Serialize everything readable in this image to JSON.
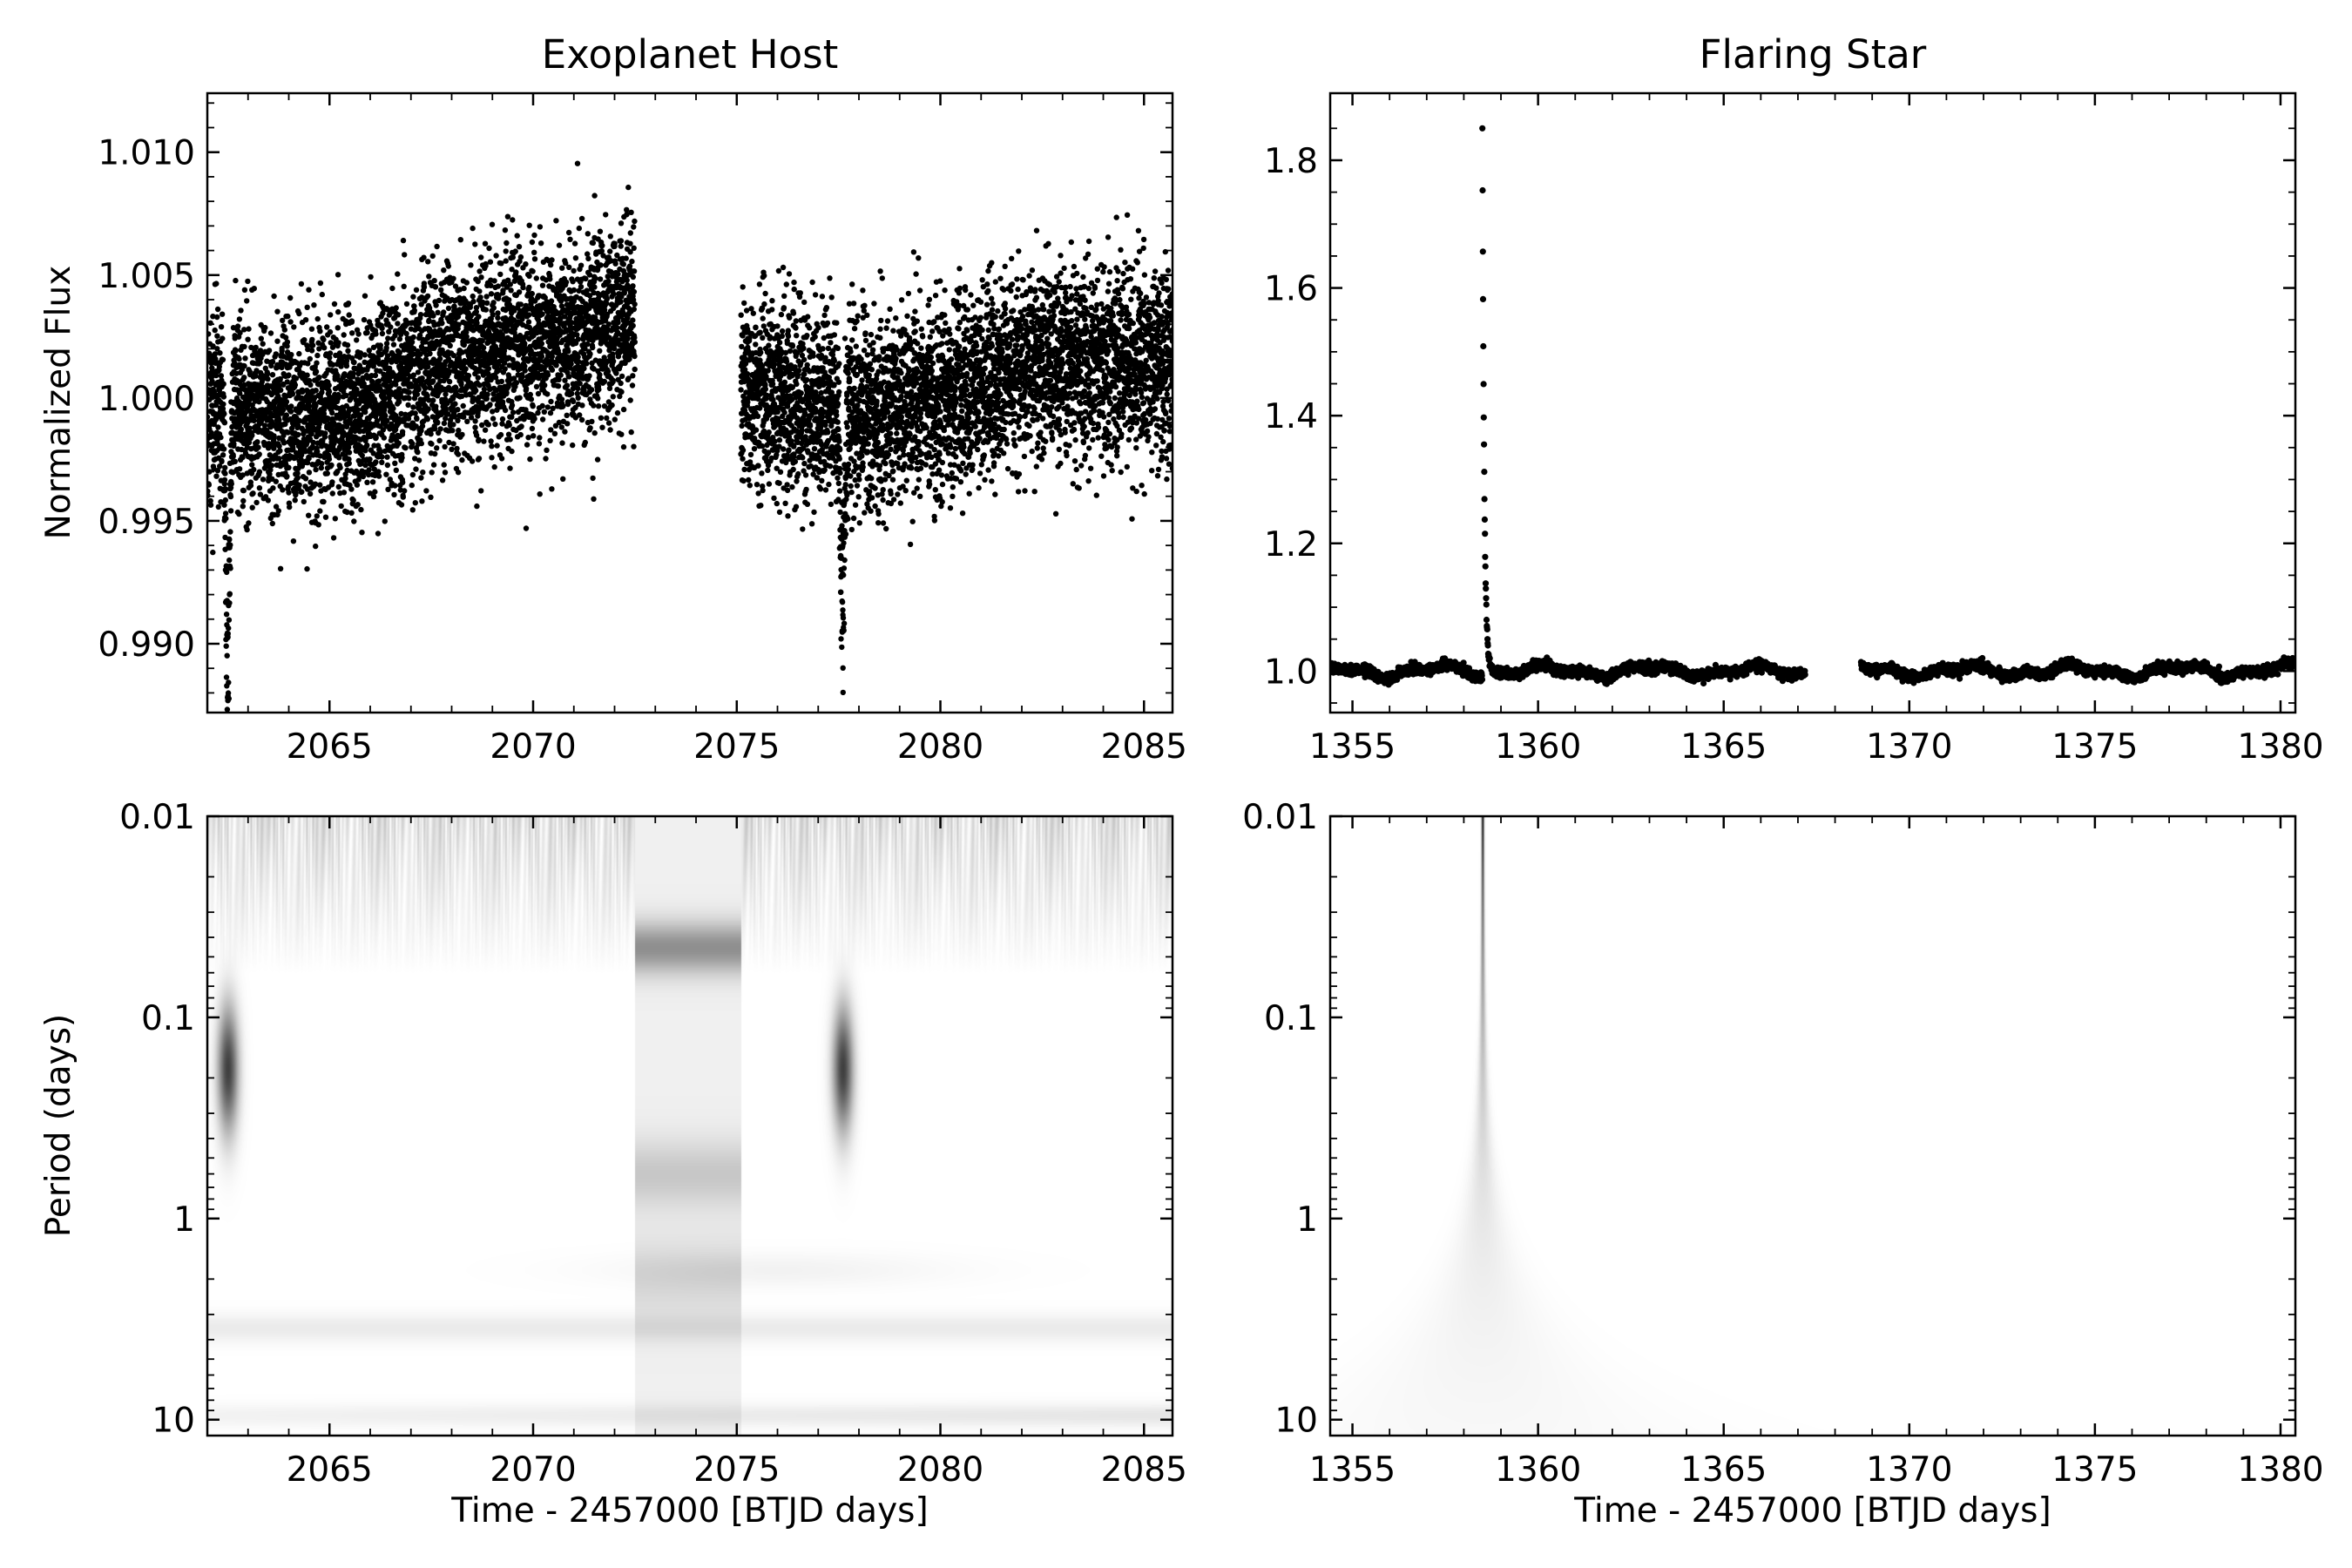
{
  "chart_data": [
    {
      "type": "scatter",
      "panel": "top-left",
      "title": "Exoplanet Host",
      "xlabel": "",
      "ylabel": "Normalized Flux",
      "xlim": [
        2062,
        2085.7
      ],
      "ylim": [
        0.9872,
        1.0124
      ],
      "xticks": [
        2065,
        2070,
        2075,
        2080,
        2085
      ],
      "xticklabels": [
        "2065",
        "2070",
        "2075",
        "2080",
        "2085"
      ],
      "yticks": [
        0.99,
        0.995,
        1.0,
        1.005,
        1.01
      ],
      "yticklabels": [
        "0.990",
        "0.995",
        "1.000",
        "1.005",
        "1.010"
      ],
      "grid": false,
      "marker_color": "#000000",
      "segments": [
        {
          "x_start": 2062.0,
          "x_end": 2072.5,
          "y_at_start": 0.9995,
          "y_at_end": 1.004,
          "scatter_std": 0.0019
        },
        {
          "x_start": 2075.1,
          "x_end": 2085.7,
          "y_at_start": 0.9997,
          "y_at_end": 1.002,
          "scatter_std": 0.0019
        }
      ],
      "transits": [
        {
          "x": 2062.5,
          "min_flux": 0.987,
          "duration": 0.3
        },
        {
          "x": 2077.6,
          "min_flux": 0.9898,
          "duration": 0.3
        }
      ]
    },
    {
      "type": "scatter",
      "panel": "top-right",
      "title": "Flaring Star",
      "xlabel": "",
      "ylabel": "",
      "xlim": [
        1354.4,
        1380.4
      ],
      "ylim": [
        0.935,
        1.905
      ],
      "xticks": [
        1355,
        1360,
        1365,
        1370,
        1375,
        1380
      ],
      "xticklabels": [
        "1355",
        "1360",
        "1365",
        "1370",
        "1375",
        "1380"
      ],
      "yticks": [
        1.0,
        1.2,
        1.4,
        1.6,
        1.8
      ],
      "yticklabels": [
        "1.0",
        "1.2",
        "1.4",
        "1.6",
        "1.8"
      ],
      "grid": false,
      "marker_color": "#000000",
      "segments": [
        {
          "x_start": 1354.4,
          "x_end": 1367.2,
          "baseline": 1.0
        },
        {
          "x_start": 1368.7,
          "x_end": 1380.4,
          "baseline": 1.0
        }
      ],
      "flare": {
        "x": 1358.5,
        "peak_flux": 1.86
      }
    },
    {
      "type": "heatmap",
      "panel": "bottom-left",
      "title": "",
      "xlabel": "Time - 2457000 [BTJD days]",
      "ylabel": "Period (days)",
      "xlim": [
        2062,
        2085.7
      ],
      "ylim": [
        0.01,
        12
      ],
      "yscale": "log",
      "y_inverted": true,
      "xticks": [
        2065,
        2070,
        2075,
        2080,
        2085
      ],
      "xticklabels": [
        "2065",
        "2070",
        "2075",
        "2080",
        "2085"
      ],
      "yticks": [
        0.01,
        0.1,
        1,
        10
      ],
      "yticklabels": [
        "0.01",
        "0.1",
        "1",
        "10"
      ],
      "colormap": "gray_r",
      "data_gap": [
        2072.5,
        2075.1
      ],
      "features": [
        {
          "x": 2062.5,
          "period_range": [
            0.07,
            0.45
          ],
          "strength": 0.8
        },
        {
          "x": 2077.6,
          "period_range": [
            0.07,
            0.45
          ],
          "strength": 0.8
        },
        {
          "period": 0.045,
          "strength": 0.35,
          "within_gap": true
        },
        {
          "period": 0.6,
          "strength": 0.2,
          "within_gap": true
        }
      ]
    },
    {
      "type": "heatmap",
      "panel": "bottom-right",
      "title": "",
      "xlabel": "Time - 2457000 [BTJD days]",
      "ylabel": "",
      "xlim": [
        1354.4,
        1380.4
      ],
      "ylim": [
        0.01,
        12
      ],
      "yscale": "log",
      "y_inverted": true,
      "xticks": [
        1355,
        1360,
        1365,
        1370,
        1375,
        1380
      ],
      "xticklabels": [
        "1355",
        "1360",
        "1365",
        "1370",
        "1375",
        "1380"
      ],
      "yticks": [
        0.01,
        0.1,
        1,
        10
      ],
      "yticklabels": [
        "0.01",
        "0.1",
        "1",
        "10"
      ],
      "colormap": "gray_r",
      "features": [
        {
          "x": 1358.5,
          "period_range": [
            0.01,
            1.5
          ],
          "strength": 1.0
        }
      ]
    }
  ]
}
